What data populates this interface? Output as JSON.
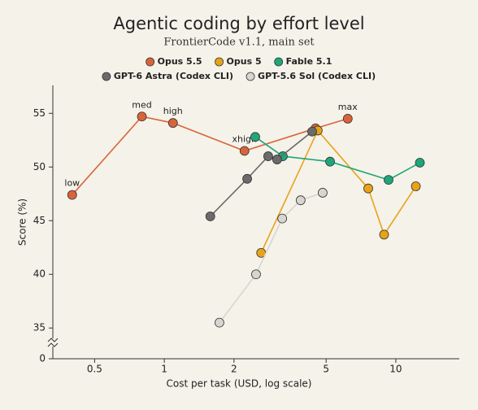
{
  "chart_data": {
    "type": "line",
    "title": "Agentic coding by effort level",
    "subtitle": "FrontierCode v1.1, main set",
    "x_label": "Cost per task (USD, log scale)",
    "y_label": "Score (%)",
    "x_scale": "log",
    "xlim": [
      0.33,
      18.8
    ],
    "xticks": [
      0.5,
      1,
      2,
      5,
      10
    ],
    "ylim": [
      0,
      57.6
    ],
    "y_break": [
      0,
      33.5
    ],
    "yticks": [
      0,
      35,
      40,
      45,
      50,
      55
    ],
    "grid": false,
    "legend": "top",
    "series": [
      {
        "name": "Opus 5.5",
        "color": "#d9643a",
        "x": [
          0.4,
          0.8,
          1.09,
          2.22,
          4.5,
          6.2
        ],
        "values": [
          47.4,
          54.7,
          54.1,
          51.5,
          53.6,
          54.5
        ],
        "point_labels": [
          "low",
          "med",
          "high",
          "xhigh",
          null,
          "max"
        ]
      },
      {
        "name": "Opus 5",
        "color": "#e8a317",
        "x": [
          2.62,
          4.6,
          7.6,
          8.9,
          12.2
        ],
        "values": [
          42.0,
          53.4,
          48.0,
          43.7,
          48.2
        ]
      },
      {
        "name": "Fable 5.1",
        "color": "#1fa67a",
        "x": [
          2.47,
          3.25,
          5.2,
          9.3,
          12.7
        ],
        "values": [
          52.8,
          51.0,
          50.5,
          48.8,
          50.4
        ]
      },
      {
        "name": "GPT-6 Astra (Codex CLI)",
        "color": "#6b6b6b",
        "x": [
          1.58,
          2.28,
          2.81,
          3.07,
          4.35
        ],
        "values": [
          45.4,
          48.9,
          51.0,
          50.7,
          53.3
        ]
      },
      {
        "name": "GPT-5.6 Sol (Codex CLI)",
        "color": "#d6d5cf",
        "x": [
          1.73,
          2.49,
          3.23,
          3.88,
          4.83
        ],
        "values": [
          35.5,
          40.0,
          45.2,
          46.9,
          47.6
        ]
      }
    ]
  }
}
